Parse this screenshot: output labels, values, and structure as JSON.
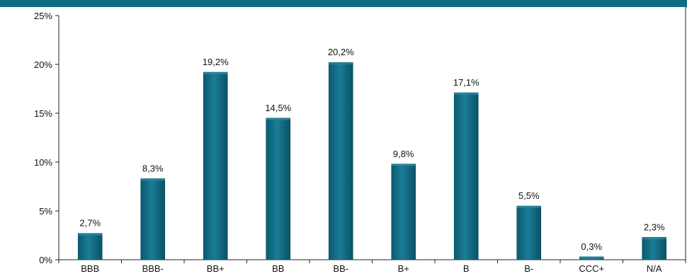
{
  "chart_data": {
    "type": "bar",
    "categories": [
      "BBB",
      "BBB-",
      "BB+",
      "BB",
      "BB-",
      "B+",
      "B",
      "B-",
      "CCC+",
      "N/A"
    ],
    "values": [
      2.7,
      8.3,
      19.2,
      14.5,
      20.2,
      9.8,
      17.1,
      5.5,
      0.3,
      2.3
    ],
    "data_labels": [
      "2,7%",
      "8,3%",
      "19,2%",
      "14,5%",
      "20,2%",
      "9,8%",
      "17,1%",
      "5,5%",
      "0,3%",
      "2,3%"
    ],
    "yticks": [
      0,
      5,
      10,
      15,
      20,
      25
    ],
    "ytick_labels": [
      "0%",
      "5%",
      "10%",
      "15%",
      "20%",
      "25%"
    ],
    "ylim": [
      0,
      25
    ],
    "grid": false,
    "legend": "none",
    "colors": {
      "bar": "#0d6b84",
      "bar_dark": "#0a4f63",
      "bar_light": "#2a8aa3",
      "header": "#0d6b84",
      "axis": "#222222"
    }
  }
}
